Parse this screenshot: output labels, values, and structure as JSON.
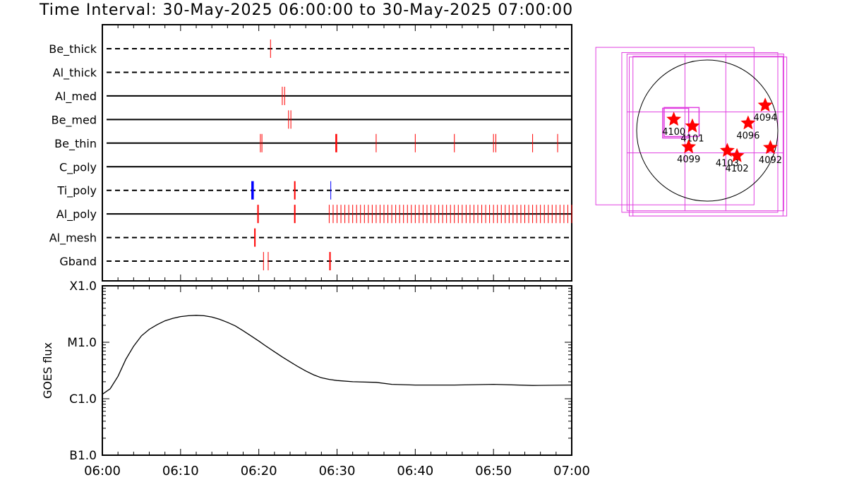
{
  "header": {
    "title": "Time Interval: 30-May-2025 06:00:00 to 30-May-2025 07:00:00"
  },
  "colors": {
    "red": "#ff0000",
    "blue": "#0000ff",
    "magenta": "#e040e0",
    "black": "#000000"
  },
  "chart_data": [
    {
      "type": "event-timeline",
      "x_range": [
        "06:00",
        "07:00"
      ],
      "x_ticks": [
        "06:00",
        "06:10",
        "06:20",
        "06:30",
        "06:40",
        "06:50",
        "07:00"
      ],
      "rows": [
        {
          "name": "Be_thick",
          "style": "dashed",
          "events": [
            {
              "t": 21.5,
              "color": "red",
              "w": 1
            }
          ]
        },
        {
          "name": "Al_thick",
          "style": "dashed",
          "events": []
        },
        {
          "name": "Al_med",
          "style": "solid",
          "events": [
            {
              "t": 23.0,
              "color": "red",
              "w": 1
            },
            {
              "t": 23.3,
              "color": "red",
              "w": 1
            }
          ]
        },
        {
          "name": "Be_med",
          "style": "solid",
          "events": [
            {
              "t": 23.8,
              "color": "red",
              "w": 1
            },
            {
              "t": 24.1,
              "color": "red",
              "w": 1
            }
          ]
        },
        {
          "name": "Be_thin",
          "style": "solid",
          "events": [
            {
              "t": 20.2,
              "color": "red",
              "w": 1
            },
            {
              "t": 20.4,
              "color": "red",
              "w": 1
            },
            {
              "t": 29.9,
              "color": "red",
              "w": 2.5
            },
            {
              "t": 35.0,
              "color": "red",
              "w": 1
            },
            {
              "t": 40.0,
              "color": "red",
              "w": 1
            },
            {
              "t": 45.0,
              "color": "red",
              "w": 1
            },
            {
              "t": 50.0,
              "color": "red",
              "w": 1
            },
            {
              "t": 50.3,
              "color": "red",
              "w": 1
            },
            {
              "t": 55.0,
              "color": "red",
              "w": 1
            },
            {
              "t": 58.2,
              "color": "red",
              "w": 1
            }
          ]
        },
        {
          "name": "C_poly",
          "style": "solid",
          "events": []
        },
        {
          "name": "Ti_poly",
          "style": "dashed",
          "events": [
            {
              "t": 19.2,
              "color": "blue",
              "w": 3.5
            },
            {
              "t": 24.6,
              "color": "red",
              "w": 2
            },
            {
              "t": 29.2,
              "color": "blue",
              "w": 1
            }
          ]
        },
        {
          "name": "Al_poly",
          "style": "solid",
          "events": [
            {
              "t": 19.9,
              "color": "red",
              "w": 2
            },
            {
              "t": 24.6,
              "color": "red",
              "w": 2
            }
          ],
          "dense": {
            "from": 29.0,
            "to": 60.0,
            "step": 0.5,
            "color": "red"
          }
        },
        {
          "name": "Al_mesh",
          "style": "dashed",
          "events": [
            {
              "t": 19.5,
              "color": "red",
              "w": 2
            }
          ]
        },
        {
          "name": "Gband",
          "style": "dashed",
          "events": [
            {
              "t": 20.6,
              "color": "red",
              "w": 1
            },
            {
              "t": 21.2,
              "color": "red",
              "w": 1
            },
            {
              "t": 29.1,
              "color": "red",
              "w": 2
            }
          ]
        }
      ]
    },
    {
      "type": "line",
      "ylabel": "GOES flux",
      "y_scale": "log",
      "y_ticks": [
        "X1.0",
        "M1.0",
        "C1.0",
        "B1.0"
      ],
      "y_tick_values": [
        0.0001,
        1e-05,
        1e-06,
        1e-07
      ],
      "ylim": [
        1e-07,
        0.0001
      ],
      "x_ticks": [
        "06:00",
        "06:10",
        "06:20",
        "06:30",
        "06:40",
        "06:50",
        "07:00"
      ],
      "xlim_minutes": [
        0,
        60
      ],
      "series": [
        {
          "minutes": [
            0,
            1,
            2,
            3,
            4,
            5,
            6,
            7,
            8,
            9,
            10,
            11,
            12,
            13,
            14,
            15,
            16,
            17,
            18,
            19,
            20,
            21,
            22,
            23,
            24,
            25,
            26,
            27,
            28,
            29,
            30,
            32,
            35,
            37,
            40,
            45,
            50,
            55,
            60
          ],
          "flux": [
            1.2e-06,
            1.5e-06,
            2.5e-06,
            5e-06,
            8.5e-06,
            1.3e-05,
            1.7e-05,
            2.05e-05,
            2.4e-05,
            2.65e-05,
            2.85e-05,
            2.95e-05,
            3e-05,
            2.95e-05,
            2.8e-05,
            2.55e-05,
            2.25e-05,
            1.95e-05,
            1.6e-05,
            1.3e-05,
            1.05e-05,
            8.4e-06,
            6.8e-06,
            5.5e-06,
            4.5e-06,
            3.7e-06,
            3.1e-06,
            2.65e-06,
            2.35e-06,
            2.2e-06,
            2.1e-06,
            2e-06,
            1.95e-06,
            1.8e-06,
            1.75e-06,
            1.75e-06,
            1.8e-06,
            1.72e-06,
            1.75e-06
          ]
        }
      ]
    },
    {
      "type": "scatter",
      "description_type": "solar-disk-map",
      "units": "arcsec",
      "disk_radius": 950,
      "points": [
        {
          "label": "4100",
          "x": -450,
          "y": 150
        },
        {
          "label": "4101",
          "x": -200,
          "y": 60
        },
        {
          "label": "4099",
          "x": -250,
          "y": -220
        },
        {
          "label": "4103",
          "x": 270,
          "y": -270
        },
        {
          "label": "4102",
          "x": 400,
          "y": -340
        },
        {
          "label": "4096",
          "x": 550,
          "y": 100
        },
        {
          "label": "4094",
          "x": 780,
          "y": 340
        },
        {
          "label": "4092",
          "x": 850,
          "y": -230
        }
      ],
      "fov_boxes": [
        {
          "x0": -1500,
          "y0": -1000,
          "x1": 630,
          "y1": 1120
        },
        {
          "x0": -1150,
          "y0": -1100,
          "x1": 950,
          "y1": 1050
        },
        {
          "x0": -1080,
          "y0": -1080,
          "x1": 1030,
          "y1": 1030
        },
        {
          "x0": -1050,
          "y0": -1150,
          "x1": 1070,
          "y1": 990
        },
        {
          "x0": -1000,
          "y0": -1150,
          "x1": 1020,
          "y1": 1000
        }
      ],
      "inner_boxes": [
        {
          "x0": -600,
          "y0": -100,
          "x1": -250,
          "y1": 300
        },
        {
          "x0": -580,
          "y0": -80,
          "x1": -110,
          "y1": 310
        }
      ],
      "grid_lines_x": [
        -300,
        250
      ],
      "grid_lines_y": [
        250,
        -300
      ]
    }
  ]
}
